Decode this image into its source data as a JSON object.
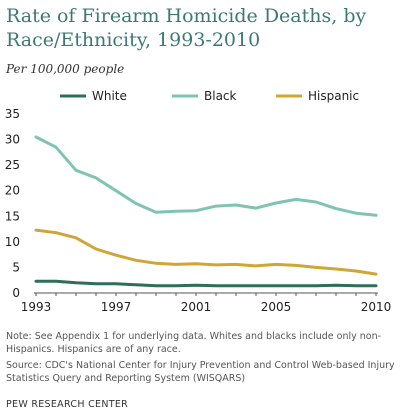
{
  "header": {
    "title": "Rate of Firearm Homicide Deaths, by Race/Ethnicity, 1993-2010",
    "subtitle": "Per 100,000 people"
  },
  "footer": {
    "note": "Note:  See Appendix 1 for underlying data. Whites and blacks include only non-Hispanics. Hispanics are of any race.",
    "source": "Source: CDC's  National Center for Injury  Prevention and Control Web-based Injury Statistics Query and Reporting System (WISQARS)",
    "credit": "PEW RESEARCH CENTER"
  },
  "chart_data": {
    "type": "line",
    "title": "Rate of Firearm Homicide Deaths, by Race/Ethnicity, 1993-2010",
    "subtitle": "Per 100,000 people",
    "x": [
      1993,
      1994,
      1995,
      1996,
      1997,
      1998,
      1999,
      2000,
      2001,
      2002,
      2003,
      2004,
      2005,
      2006,
      2007,
      2008,
      2009,
      2010
    ],
    "x_tick_labels": [
      "1993",
      "1997",
      "2001",
      "2005",
      "2010"
    ],
    "x_tick_values": [
      1993,
      1997,
      2001,
      2005,
      2010
    ],
    "ylim": [
      0,
      35
    ],
    "y_ticks": [
      0,
      5,
      10,
      15,
      20,
      25,
      30,
      35
    ],
    "grid": false,
    "legend_position": "top",
    "series": [
      {
        "name": "White",
        "color": "#2e6e57",
        "values": [
          2.3,
          2.3,
          2.0,
          1.8,
          1.8,
          1.6,
          1.4,
          1.4,
          1.5,
          1.4,
          1.4,
          1.4,
          1.4,
          1.4,
          1.4,
          1.5,
          1.4,
          1.4
        ]
      },
      {
        "name": "Black",
        "color": "#7fc4b1",
        "values": [
          30.5,
          28.5,
          24.0,
          22.5,
          20.0,
          17.5,
          15.8,
          16.0,
          16.1,
          17.0,
          17.2,
          16.6,
          17.6,
          18.3,
          17.8,
          16.5,
          15.6,
          15.2
        ]
      },
      {
        "name": "Hispanic",
        "color": "#cfa536",
        "values": [
          12.3,
          11.8,
          10.8,
          8.6,
          7.4,
          6.4,
          5.8,
          5.6,
          5.7,
          5.5,
          5.6,
          5.3,
          5.6,
          5.4,
          5.0,
          4.7,
          4.3,
          3.7
        ]
      }
    ]
  }
}
